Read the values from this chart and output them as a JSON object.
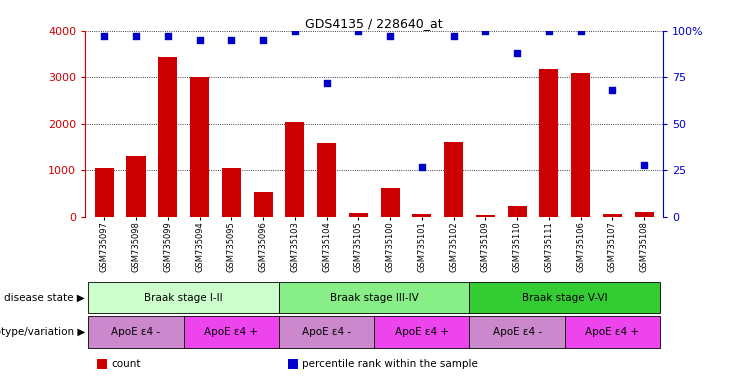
{
  "title": "GDS4135 / 228640_at",
  "samples": [
    "GSM735097",
    "GSM735098",
    "GSM735099",
    "GSM735094",
    "GSM735095",
    "GSM735096",
    "GSM735103",
    "GSM735104",
    "GSM735105",
    "GSM735100",
    "GSM735101",
    "GSM735102",
    "GSM735109",
    "GSM735110",
    "GSM735111",
    "GSM735106",
    "GSM735107",
    "GSM735108"
  ],
  "counts": [
    1050,
    1300,
    3430,
    3000,
    1060,
    530,
    2050,
    1580,
    90,
    620,
    70,
    1600,
    50,
    230,
    3180,
    3100,
    70,
    100
  ],
  "percentiles": [
    97,
    97,
    97,
    95,
    95,
    95,
    100,
    72,
    100,
    97,
    27,
    97,
    100,
    88,
    100,
    100,
    68,
    28
  ],
  "bar_color": "#cc0000",
  "dot_color": "#0000cc",
  "ylim_left": [
    0,
    4000
  ],
  "ylim_right": [
    0,
    100
  ],
  "yticks_left": [
    0,
    1000,
    2000,
    3000,
    4000
  ],
  "yticks_right": [
    0,
    25,
    50,
    75,
    100
  ],
  "disease_state_groups": [
    {
      "label": "Braak stage I-II",
      "start": 0,
      "end": 6,
      "color": "#ccffcc"
    },
    {
      "label": "Braak stage III-IV",
      "start": 6,
      "end": 12,
      "color": "#88ee88"
    },
    {
      "label": "Braak stage V-VI",
      "start": 12,
      "end": 18,
      "color": "#33cc33"
    }
  ],
  "genotype_groups": [
    {
      "label": "ApoE ε4 -",
      "start": 0,
      "end": 3,
      "color": "#cc88cc"
    },
    {
      "label": "ApoE ε4 +",
      "start": 3,
      "end": 6,
      "color": "#ee44ee"
    },
    {
      "label": "ApoE ε4 -",
      "start": 6,
      "end": 9,
      "color": "#cc88cc"
    },
    {
      "label": "ApoE ε4 +",
      "start": 9,
      "end": 12,
      "color": "#ee44ee"
    },
    {
      "label": "ApoE ε4 -",
      "start": 12,
      "end": 15,
      "color": "#cc88cc"
    },
    {
      "label": "ApoE ε4 +",
      "start": 15,
      "end": 18,
      "color": "#ee44ee"
    }
  ],
  "legend_items": [
    {
      "label": "count",
      "color": "#cc0000"
    },
    {
      "label": "percentile rank within the sample",
      "color": "#0000cc"
    }
  ],
  "disease_state_label": "disease state",
  "genotype_label": "genotype/variation",
  "arrow": "▶"
}
